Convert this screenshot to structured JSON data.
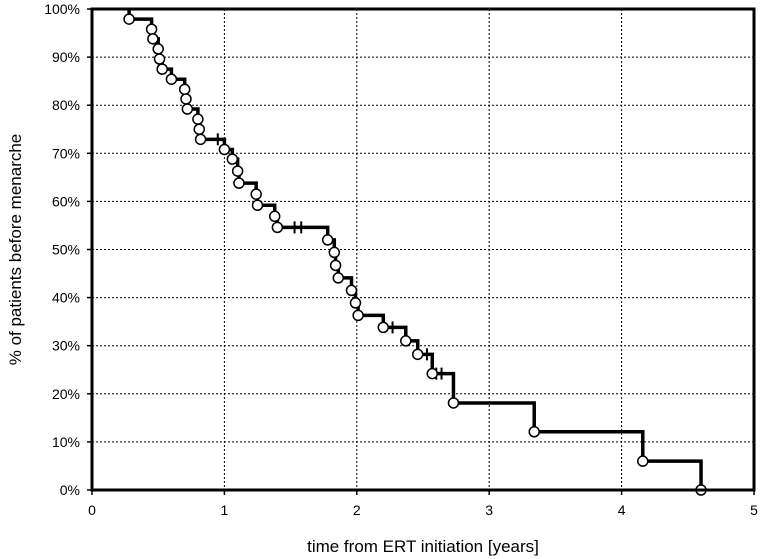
{
  "chart_data": {
    "type": "line",
    "subtype": "kaplan-meier",
    "title": "",
    "xlabel": "time from ERT initiation [years]",
    "ylabel": "% of patients before menarche",
    "xlim": [
      0,
      5
    ],
    "ylim": [
      0,
      100
    ],
    "x_ticks": [
      0,
      1,
      2,
      3,
      4,
      5
    ],
    "x_tick_labels": [
      "0",
      "1",
      "2",
      "3",
      "4",
      "5"
    ],
    "y_ticks": [
      0,
      10,
      20,
      30,
      40,
      50,
      60,
      70,
      80,
      90,
      100
    ],
    "y_tick_labels": [
      "0%",
      "10%",
      "20%",
      "30%",
      "40%",
      "50%",
      "60%",
      "70%",
      "80%",
      "90%",
      "100%"
    ],
    "grid": true,
    "legend": false,
    "series": [
      {
        "line_color": "#000000",
        "start": 100,
        "steps": [
          {
            "x": 0.28,
            "y": 97.9
          },
          {
            "x": 0.45,
            "y": 95.8
          },
          {
            "x": 0.46,
            "y": 93.8
          },
          {
            "x": 0.5,
            "y": 91.7
          },
          {
            "x": 0.51,
            "y": 89.6
          },
          {
            "x": 0.53,
            "y": 87.5
          },
          {
            "x": 0.6,
            "y": 85.4
          },
          {
            "x": 0.7,
            "y": 83.3
          },
          {
            "x": 0.71,
            "y": 81.3
          },
          {
            "x": 0.72,
            "y": 79.2
          },
          {
            "x": 0.8,
            "y": 77.1
          },
          {
            "x": 0.81,
            "y": 75.0
          },
          {
            "x": 0.82,
            "y": 72.9
          },
          {
            "x": 1.0,
            "y": 70.8
          },
          {
            "x": 1.06,
            "y": 68.8
          },
          {
            "x": 1.1,
            "y": 66.3
          },
          {
            "x": 1.11,
            "y": 63.8
          },
          {
            "x": 1.24,
            "y": 61.5
          },
          {
            "x": 1.25,
            "y": 59.2
          },
          {
            "x": 1.38,
            "y": 56.9
          },
          {
            "x": 1.4,
            "y": 54.6
          },
          {
            "x": 1.78,
            "y": 52.0
          },
          {
            "x": 1.83,
            "y": 49.4
          },
          {
            "x": 1.84,
            "y": 46.7
          },
          {
            "x": 1.86,
            "y": 44.1
          },
          {
            "x": 1.96,
            "y": 41.5
          },
          {
            "x": 1.99,
            "y": 38.9
          },
          {
            "x": 2.01,
            "y": 36.3
          },
          {
            "x": 2.2,
            "y": 33.8
          },
          {
            "x": 2.37,
            "y": 31.0
          },
          {
            "x": 2.46,
            "y": 28.2
          },
          {
            "x": 2.57,
            "y": 24.2
          },
          {
            "x": 2.73,
            "y": 18.1
          },
          {
            "x": 3.34,
            "y": 12.1
          },
          {
            "x": 4.16,
            "y": 6.0
          },
          {
            "x": 4.6,
            "y": 0.0
          }
        ],
        "censored": [
          {
            "x": 0.95,
            "y": 72.9
          },
          {
            "x": 1.53,
            "y": 54.6
          },
          {
            "x": 1.58,
            "y": 54.6
          },
          {
            "x": 2.27,
            "y": 33.8
          },
          {
            "x": 2.53,
            "y": 28.2
          },
          {
            "x": 2.6,
            "y": 24.2
          },
          {
            "x": 2.64,
            "y": 24.2
          }
        ]
      }
    ]
  }
}
